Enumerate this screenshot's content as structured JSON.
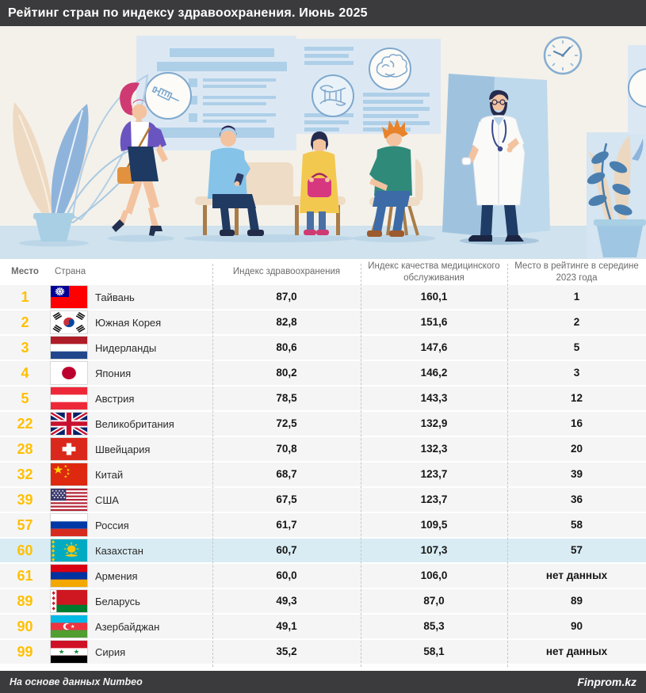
{
  "title": "Рейтинг стран по индексу здравоохранения. Июнь 2025",
  "footer": {
    "source_note": "На основе данных Numbeo",
    "brand": "Finprom.kz"
  },
  "table": {
    "columns": [
      "Место",
      "Страна",
      "Индекс здравоохранения",
      "Индекс качества медицинского обслуживания",
      "Место в рейтинге в середине 2023 года"
    ],
    "rows": [
      {
        "rank": "1",
        "flag": "tw",
        "country": "Тайвань",
        "health_index": "87,0",
        "quality_index": "160,1",
        "rank_2023": "1",
        "highlight": false
      },
      {
        "rank": "2",
        "flag": "kr",
        "country": "Южная Корея",
        "health_index": "82,8",
        "quality_index": "151,6",
        "rank_2023": "2",
        "highlight": false
      },
      {
        "rank": "3",
        "flag": "nl",
        "country": "Нидерланды",
        "health_index": "80,6",
        "quality_index": "147,6",
        "rank_2023": "5",
        "highlight": false
      },
      {
        "rank": "4",
        "flag": "jp",
        "country": "Япония",
        "health_index": "80,2",
        "quality_index": "146,2",
        "rank_2023": "3",
        "highlight": false
      },
      {
        "rank": "5",
        "flag": "at",
        "country": "Австрия",
        "health_index": "78,5",
        "quality_index": "143,3",
        "rank_2023": "12",
        "highlight": false
      },
      {
        "rank": "22",
        "flag": "gb",
        "country": "Великобритания",
        "health_index": "72,5",
        "quality_index": "132,9",
        "rank_2023": "16",
        "highlight": false
      },
      {
        "rank": "28",
        "flag": "ch",
        "country": "Швейцария",
        "health_index": "70,8",
        "quality_index": "132,3",
        "rank_2023": "20",
        "highlight": false
      },
      {
        "rank": "32",
        "flag": "cn",
        "country": "Китай",
        "health_index": "68,7",
        "quality_index": "123,7",
        "rank_2023": "39",
        "highlight": false
      },
      {
        "rank": "39",
        "flag": "us",
        "country": "США",
        "health_index": "67,5",
        "quality_index": "123,7",
        "rank_2023": "36",
        "highlight": false
      },
      {
        "rank": "57",
        "flag": "ru",
        "country": "Россия",
        "health_index": "61,7",
        "quality_index": "109,5",
        "rank_2023": "58",
        "highlight": false
      },
      {
        "rank": "60",
        "flag": "kz",
        "country": "Казахстан",
        "health_index": "60,7",
        "quality_index": "107,3",
        "rank_2023": "57",
        "highlight": true
      },
      {
        "rank": "61",
        "flag": "am",
        "country": "Армения",
        "health_index": "60,0",
        "quality_index": "106,0",
        "rank_2023": "нет данных",
        "highlight": false
      },
      {
        "rank": "89",
        "flag": "by",
        "country": "Беларусь",
        "health_index": "49,3",
        "quality_index": "87,0",
        "rank_2023": "89",
        "highlight": false
      },
      {
        "rank": "90",
        "flag": "az",
        "country": "Азербайджан",
        "health_index": "49,1",
        "quality_index": "85,3",
        "rank_2023": "90",
        "highlight": false
      },
      {
        "rank": "99",
        "flag": "sy",
        "country": "Сирия",
        "health_index": "35,2",
        "quality_index": "58,1",
        "rank_2023": "нет данных",
        "highlight": false
      }
    ]
  },
  "chart_data": {
    "type": "table",
    "title": "Рейтинг стран по индексу здравоохранения. Июнь 2025",
    "columns": [
      "Место",
      "Страна",
      "Индекс здравоохранения",
      "Индекс качества медицинского обслуживания",
      "Место в рейтинге в середине 2023 года"
    ],
    "rows": [
      [
        "1",
        "Тайвань",
        "87,0",
        "160,1",
        "1"
      ],
      [
        "2",
        "Южная Корея",
        "82,8",
        "151,6",
        "2"
      ],
      [
        "3",
        "Нидерланды",
        "80,6",
        "147,6",
        "5"
      ],
      [
        "4",
        "Япония",
        "80,2",
        "146,2",
        "3"
      ],
      [
        "5",
        "Австрия",
        "78,5",
        "143,3",
        "12"
      ],
      [
        "22",
        "Великобритания",
        "72,5",
        "132,9",
        "16"
      ],
      [
        "28",
        "Швейцария",
        "70,8",
        "132,3",
        "20"
      ],
      [
        "32",
        "Китай",
        "68,7",
        "123,7",
        "39"
      ],
      [
        "39",
        "США",
        "67,5",
        "123,7",
        "36"
      ],
      [
        "57",
        "Россия",
        "61,7",
        "109,5",
        "58"
      ],
      [
        "60",
        "Казахстан",
        "60,7",
        "107,3",
        "57"
      ],
      [
        "61",
        "Армения",
        "60,0",
        "106,0",
        "нет данных"
      ],
      [
        "89",
        "Беларусь",
        "49,3",
        "87,0",
        "89"
      ],
      [
        "90",
        "Азербайджан",
        "49,1",
        "85,3",
        "90"
      ],
      [
        "99",
        "Сирия",
        "35,2",
        "58,1",
        "нет данных"
      ]
    ],
    "highlighted_row": "Казахстан",
    "source": "На основе данных Numbeo",
    "publisher": "Finprom.kz"
  },
  "colors": {
    "bar_dark": "#3b3b3d",
    "rank_accent": "#ffc000",
    "row_bg": "#f5f5f6",
    "highlight_row": "#d9ecf3",
    "header_text": "#6b6b6b",
    "scene_wall": "#f4f1ea",
    "scene_floor": "#cfe2ed"
  }
}
